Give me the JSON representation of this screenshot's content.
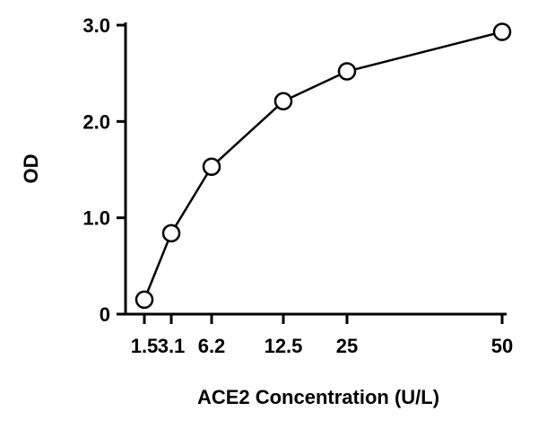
{
  "chart_data": {
    "type": "line",
    "title": "",
    "xlabel": "ACE2 Concentration (U/L)",
    "ylabel": "OD",
    "x": [
      1.5,
      3.1,
      6.2,
      12.5,
      25,
      50
    ],
    "x_tick_labels": [
      "1.5",
      "3.1",
      "6.2",
      "12.5",
      "25",
      "50"
    ],
    "y_ticks": [
      0,
      1.0,
      2.0,
      3.0
    ],
    "y_tick_labels": [
      "0",
      "1.0",
      "2.0",
      "3.0"
    ],
    "ylim": [
      0,
      3.0
    ],
    "series": [
      {
        "values": [
          0.15,
          0.84,
          1.53,
          2.21,
          2.52,
          2.93
        ]
      }
    ],
    "x_scale": "non-linear (log-like)",
    "grid": false,
    "legend": "none",
    "marker": "open-circle",
    "line_color": "#000000",
    "marker_fill": "#ffffff"
  }
}
